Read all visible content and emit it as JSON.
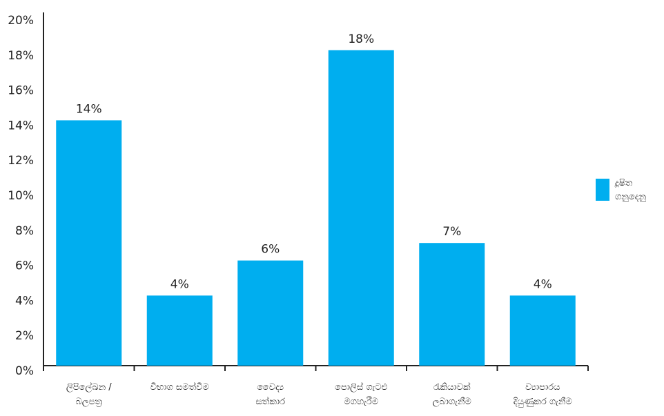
{
  "chart_data": {
    "type": "bar",
    "categories": [
      "ලිපිලේඛන /\nබලපත්‍ර",
      "විභාග සමත්වීම",
      "වෛද්‍ය\nසත්කාර",
      "පොලිස් ගැටළු\nමගහැරීම",
      "රැකියාවක්\nලබාගැනීම",
      "ව්‍යාපාරය\nදියුණුකර ගැනීම"
    ],
    "series": [
      {
        "name": "දූෂිත\nගනුදෙනු",
        "color": "#00aeef",
        "values": [
          14,
          4,
          6,
          18,
          7,
          4
        ],
        "value_labels": [
          "14%",
          "4%",
          "6%",
          "18%",
          "7%",
          "4%"
        ]
      }
    ],
    "ylim": [
      0,
      20
    ],
    "yticks": [
      {
        "value": 0,
        "label": "0%"
      },
      {
        "value": 2,
        "label": "2%"
      },
      {
        "value": 4,
        "label": "4%"
      },
      {
        "value": 6,
        "label": "6%"
      },
      {
        "value": 8,
        "label": "8%"
      },
      {
        "value": 10,
        "label": "10%"
      },
      {
        "value": 12,
        "label": "12%"
      },
      {
        "value": 14,
        "label": "14%"
      },
      {
        "value": 16,
        "label": "16%"
      },
      {
        "value": 18,
        "label": "18%"
      },
      {
        "value": 20,
        "label": "20%"
      }
    ],
    "grid": false,
    "legend": "right"
  }
}
